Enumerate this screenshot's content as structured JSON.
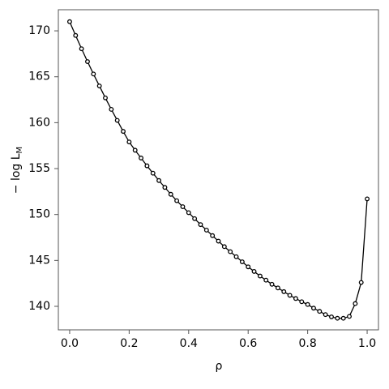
{
  "chart_data": {
    "type": "line",
    "x_label": "ρ",
    "y_label": "− log L",
    "y_label_subscript": "M",
    "x": [
      0,
      0.02,
      0.04,
      0.06,
      0.08,
      0.1,
      0.12,
      0.14,
      0.16,
      0.18,
      0.2,
      0.22,
      0.24,
      0.26,
      0.28,
      0.3,
      0.32,
      0.34,
      0.36,
      0.38,
      0.4,
      0.42,
      0.44,
      0.46,
      0.48,
      0.5,
      0.52,
      0.54,
      0.56,
      0.58,
      0.6,
      0.62,
      0.64,
      0.66,
      0.68,
      0.7,
      0.72,
      0.74,
      0.76,
      0.78,
      0.8,
      0.82,
      0.84,
      0.86,
      0.88,
      0.9,
      0.92,
      0.94,
      0.96,
      0.98,
      1.0
    ],
    "series": [
      {
        "color": "#000000",
        "values": [
          171.0,
          169.5,
          168.05,
          166.65,
          165.3,
          164.0,
          162.7,
          161.45,
          160.25,
          159.05,
          157.9,
          157.0,
          156.15,
          155.3,
          154.5,
          153.7,
          152.95,
          152.2,
          151.5,
          150.85,
          150.2,
          149.55,
          148.9,
          148.3,
          147.7,
          147.1,
          146.5,
          145.95,
          145.4,
          144.85,
          144.3,
          143.8,
          143.3,
          142.85,
          142.4,
          142.0,
          141.6,
          141.2,
          140.85,
          140.5,
          140.2,
          139.8,
          139.45,
          139.1,
          138.85,
          138.7,
          138.7,
          138.9,
          140.3,
          142.6,
          151.7
        ]
      }
    ],
    "xlim": [
      -0.038,
      1.038
    ],
    "ylim": [
      137.44,
      172.3
    ],
    "xticks": [
      {
        "value": 0,
        "label": "0.0"
      },
      0.2,
      0.4,
      0.6,
      0.8,
      {
        "value": 1,
        "label": "1.0"
      }
    ],
    "yticks": [
      140,
      145,
      150,
      155,
      160,
      165,
      170
    ]
  }
}
